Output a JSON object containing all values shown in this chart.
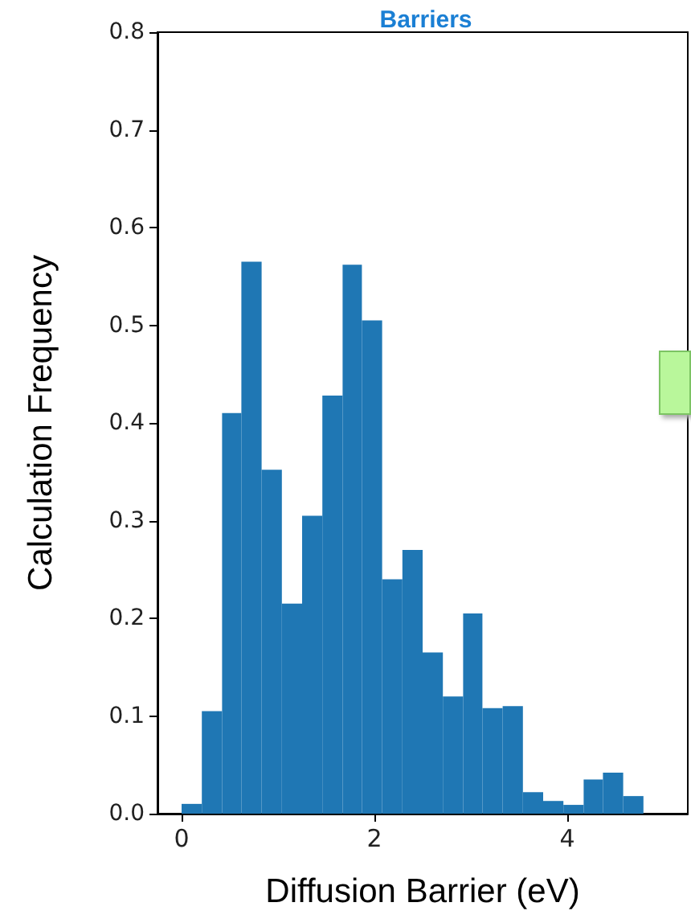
{
  "chart_data": {
    "type": "histogram",
    "title": "Barriers",
    "xlabel": "Diffusion Barrier (eV)",
    "ylabel": "Calculation Frequency",
    "color": "#1f77b4",
    "bins": [
      0,
      0.21,
      0.42,
      0.62,
      0.83,
      1.04,
      1.25,
      1.46,
      1.67,
      1.87,
      2.08,
      2.29,
      2.5,
      2.71,
      2.92,
      3.12,
      3.33,
      3.54,
      3.75,
      3.96,
      4.17,
      4.37,
      4.58,
      4.79
    ],
    "values": [
      0.01,
      0.105,
      0.41,
      0.565,
      0.352,
      0.215,
      0.305,
      0.428,
      0.562,
      0.505,
      0.24,
      0.27,
      0.165,
      0.12,
      0.205,
      0.108,
      0.11,
      0.022,
      0.013,
      0.009,
      0.035,
      0.042,
      0.018
    ],
    "xlim": [
      -0.25,
      5.25
    ],
    "xticks": [
      0,
      2,
      4
    ],
    "ylim": [
      0,
      0.8
    ],
    "yticks": [
      {
        "value": 0,
        "label": "0.0"
      },
      0.1,
      0.2,
      0.3,
      0.4,
      0.5,
      0.6,
      0.7,
      0.8
    ],
    "grid": false
  }
}
